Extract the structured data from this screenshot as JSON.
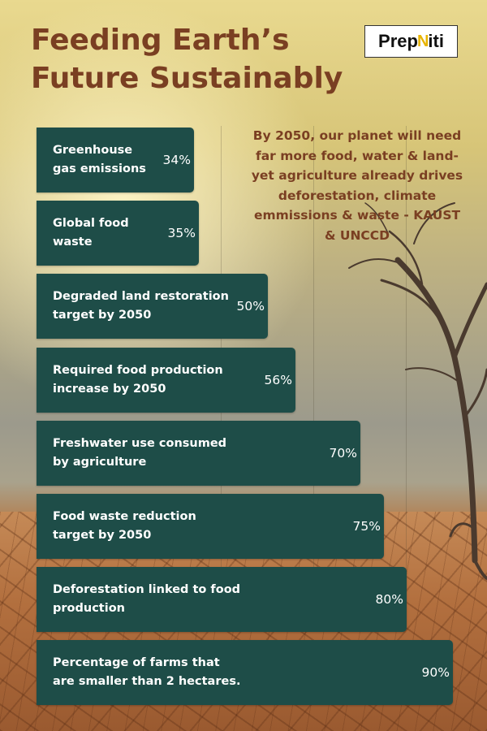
{
  "title": "Feeding Earth’s\nFuture Sustainably",
  "logo": {
    "text_a": "Prep",
    "text_b": "iti",
    "spark": "N"
  },
  "quote": "By 2050, our planet will need far more food, water & land- yet agriculture already drives deforestation, climate emmissions & waste - KAUST & UNCCD",
  "colors": {
    "bar": "#1e4d48",
    "title": "#7a3f22",
    "text": "#ffffff"
  },
  "chart_data": {
    "type": "bar",
    "orientation": "horizontal",
    "title": "",
    "xlabel": "",
    "ylabel": "",
    "xlim": [
      0,
      100
    ],
    "categories": [
      "Greenhouse gas emissions",
      "Global food waste",
      "Degraded land restoration target by 2050",
      "Required food production increase by 2050",
      "Freshwater use consumed by agriculture",
      "Food waste reduction target by 2050",
      "Deforestation linked to food production",
      "Percentage of farms that are smaller than 2 hectares."
    ],
    "values": [
      34,
      35,
      50,
      56,
      70,
      75,
      80,
      90
    ],
    "value_labels": [
      "34%",
      "35%",
      "50%",
      "56%",
      "70%",
      "75%",
      "80%",
      "90%"
    ]
  }
}
